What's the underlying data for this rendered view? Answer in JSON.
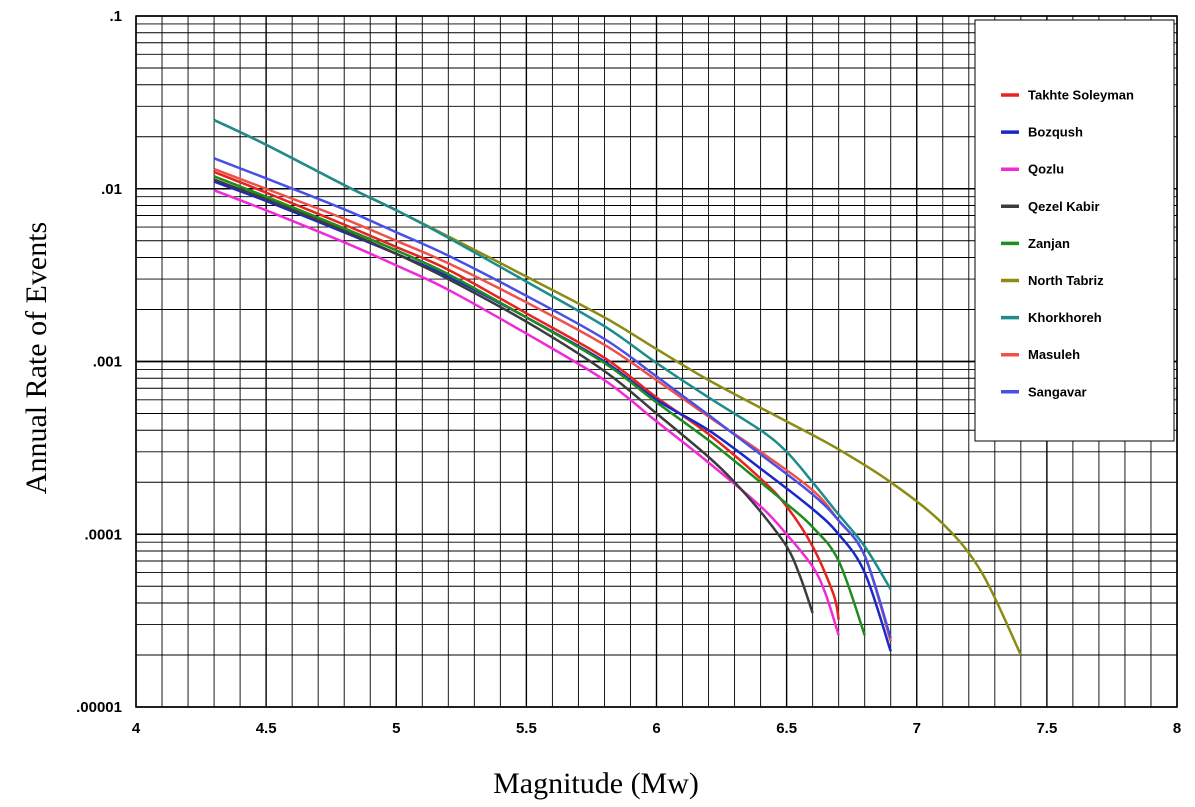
{
  "chart_data": {
    "type": "line",
    "xlabel": "Magnitude (Mw)",
    "ylabel": "Annual Rate of Events",
    "xlim": [
      4,
      8
    ],
    "ylim": [
      1e-05,
      0.1
    ],
    "y_scale": "log",
    "x_ticks": [
      4,
      4.5,
      5,
      5.5,
      6,
      6.5,
      7,
      7.5,
      8
    ],
    "x_tick_labels": [
      "4",
      "4.5",
      "5",
      "5.5",
      "6",
      "6.5",
      "7",
      "7.5",
      "8"
    ],
    "y_ticks": [
      1e-05,
      0.0001,
      0.001,
      0.01,
      0.1
    ],
    "y_tick_labels": [
      ".00001",
      ".0001",
      ".001",
      ".01",
      ".1"
    ],
    "grid": true,
    "legend_position": "top-right",
    "series": [
      {
        "name": "Takhte Soleyman",
        "color": "#e8221f",
        "x": [
          4.3,
          4.5,
          4.8,
          5.0,
          5.2,
          5.5,
          5.8,
          6.0,
          6.2,
          6.4,
          6.5,
          6.6,
          6.68,
          6.7
        ],
        "y": [
          0.0125,
          0.0095,
          0.0062,
          0.0046,
          0.0034,
          0.0019,
          0.00105,
          0.00062,
          0.00038,
          0.00021,
          0.000145,
          8.5e-05,
          4.5e-05,
          3.2e-05
        ]
      },
      {
        "name": "Bozqush",
        "color": "#1a28c8",
        "x": [
          4.3,
          4.5,
          4.8,
          5.0,
          5.2,
          5.5,
          5.8,
          6.0,
          6.2,
          6.4,
          6.6,
          6.7,
          6.8,
          6.9
        ],
        "y": [
          0.011,
          0.0085,
          0.0056,
          0.0042,
          0.0031,
          0.0018,
          0.001,
          0.0006,
          0.0004,
          0.00024,
          0.00014,
          0.0001,
          6e-05,
          2.1e-05
        ]
      },
      {
        "name": "Qozlu",
        "color": "#f02ad8",
        "x": [
          4.3,
          4.5,
          4.8,
          5.0,
          5.2,
          5.5,
          5.8,
          6.0,
          6.2,
          6.4,
          6.5,
          6.6,
          6.65,
          6.7
        ],
        "y": [
          0.0098,
          0.0075,
          0.0049,
          0.0036,
          0.0026,
          0.00145,
          0.00078,
          0.00045,
          0.00026,
          0.000145,
          0.0001,
          6.5e-05,
          4.5e-05,
          2.6e-05
        ]
      },
      {
        "name": "Qezel Kabir",
        "color": "#3c3c3c",
        "x": [
          4.3,
          4.5,
          4.8,
          5.0,
          5.2,
          5.5,
          5.8,
          6.0,
          6.2,
          6.3,
          6.4,
          6.5,
          6.55,
          6.6
        ],
        "y": [
          0.0113,
          0.0087,
          0.0057,
          0.0042,
          0.003,
          0.0017,
          0.00088,
          0.0005,
          0.00028,
          0.0002,
          0.000135,
          8.5e-05,
          5.8e-05,
          3.5e-05
        ]
      },
      {
        "name": "Zanjan",
        "color": "#1e8c1e",
        "x": [
          4.3,
          4.5,
          4.8,
          5.0,
          5.2,
          5.5,
          5.8,
          6.0,
          6.2,
          6.4,
          6.5,
          6.6,
          6.7,
          6.8
        ],
        "y": [
          0.0118,
          0.009,
          0.0059,
          0.0044,
          0.0032,
          0.0018,
          0.00098,
          0.00058,
          0.00035,
          0.0002,
          0.00015,
          0.00011,
          7e-05,
          2.6e-05
        ]
      },
      {
        "name": "North Tabriz",
        "color": "#8c8c14",
        "x": [
          4.3,
          4.5,
          4.8,
          5.0,
          5.2,
          5.5,
          5.8,
          6.0,
          6.2,
          6.5,
          6.7,
          6.9,
          7.1,
          7.25,
          7.4
        ],
        "y": [
          0.025,
          0.018,
          0.0105,
          0.0075,
          0.0053,
          0.0031,
          0.0018,
          0.00118,
          0.00078,
          0.00045,
          0.00031,
          0.0002,
          0.000115,
          6e-05,
          2e-05
        ]
      },
      {
        "name": "Khorkhoreh",
        "color": "#1e8c8c",
        "x": [
          4.3,
          4.5,
          4.8,
          5.0,
          5.2,
          5.5,
          5.8,
          6.0,
          6.2,
          6.4,
          6.5,
          6.6,
          6.7,
          6.8,
          6.9
        ],
        "y": [
          0.025,
          0.018,
          0.0105,
          0.0075,
          0.0052,
          0.0029,
          0.0016,
          0.00098,
          0.00062,
          0.0004,
          0.0003,
          0.0002,
          0.00013,
          8.5e-05,
          4.8e-05
        ]
      },
      {
        "name": "Masuleh",
        "color": "#f0504a",
        "x": [
          4.3,
          4.5,
          4.8,
          5.0,
          5.2,
          5.5,
          5.8,
          6.0,
          6.2,
          6.4,
          6.6,
          6.7,
          6.8,
          6.9
        ],
        "y": [
          0.013,
          0.01,
          0.0067,
          0.005,
          0.0037,
          0.0022,
          0.00125,
          0.00078,
          0.00048,
          0.0003,
          0.00018,
          0.00012,
          7.5e-05,
          2.4e-05
        ]
      },
      {
        "name": "Sangavar",
        "color": "#4850e6",
        "x": [
          4.3,
          4.5,
          4.8,
          5.0,
          5.2,
          5.5,
          5.8,
          6.0,
          6.2,
          6.4,
          6.6,
          6.7,
          6.8,
          6.9
        ],
        "y": [
          0.015,
          0.0115,
          0.0076,
          0.0056,
          0.0041,
          0.0024,
          0.00135,
          0.00082,
          0.00049,
          0.00029,
          0.00017,
          0.00012,
          7.5e-05,
          2.5e-05
        ]
      }
    ]
  }
}
